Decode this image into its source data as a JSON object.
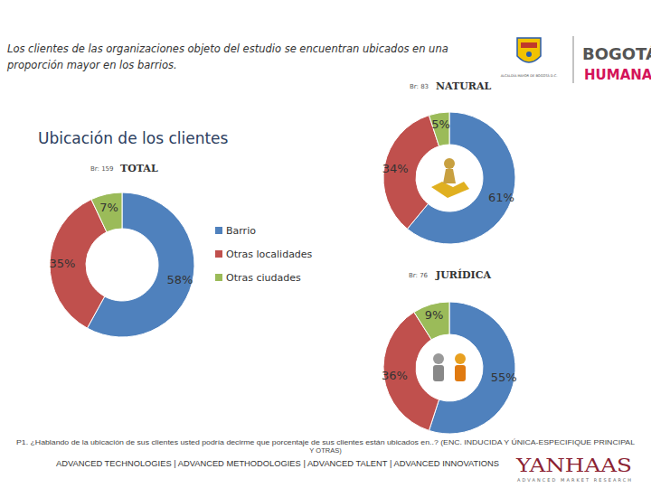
{
  "heading": {
    "lines": [
      "Los clientes de las organizaciones objeto del estudio se encuentran ubicados en una",
      "proporción mayor en los barrios."
    ],
    "title": "Ubicación de los clientes"
  },
  "chart_data": [
    {
      "type": "pie",
      "title": "TOTAL",
      "subtitle": "Br: 159",
      "categories": [
        "Barrio",
        "Otras localidades",
        "Otras ciudades"
      ],
      "values": [
        58,
        35,
        7
      ],
      "value_labels": [
        "58%",
        "35%",
        "7%"
      ],
      "colors": [
        "#4f81bd",
        "#c0504d",
        "#9bbb59"
      ],
      "data_labels": true,
      "legend": "right"
    },
    {
      "type": "pie",
      "title": "NATURAL",
      "subtitle": "Br: 83",
      "values": [
        61,
        34,
        5
      ],
      "value_labels": [
        "61%",
        "34%",
        "5%"
      ],
      "colors": [
        "#4f81bd",
        "#c0504d",
        "#9bbb59"
      ],
      "data_labels": true
    },
    {
      "type": "pie",
      "title": "JURÍDICA",
      "subtitle": "Br: 76",
      "values": [
        55,
        36,
        9
      ],
      "value_labels": [
        "55%",
        "36%",
        "9%"
      ],
      "colors": [
        "#4f81bd",
        "#c0504d",
        "#9bbb59"
      ],
      "data_labels": true
    }
  ],
  "footer": {
    "question": [
      "P1. ¿Hablando de la ubicación de sus clientes usted podría decirme que porcentaje de sus clientes están ubicados en..? (ENC. INDUCIDA Y ÚNICA-ESPECIFIQUE PRINCIPAL",
      "Y OTRAS)"
    ],
    "tagline": "ADVANCED TECHNOLOGIES  |  ADVANCED METHODOLOGIES  |  ADVANCED TALENT  |  ADVANCED INNOVATIONS"
  },
  "logos": {
    "city": {
      "org": "ALCALDÍA MAYOR DE BOGOTÁ D.C.",
      "line1": "BOGOTÁ",
      "line2": "HUMANA"
    },
    "company": {
      "name": "YANHAAS",
      "tagline": "ADVANCED MARKET RESEARCH"
    }
  }
}
